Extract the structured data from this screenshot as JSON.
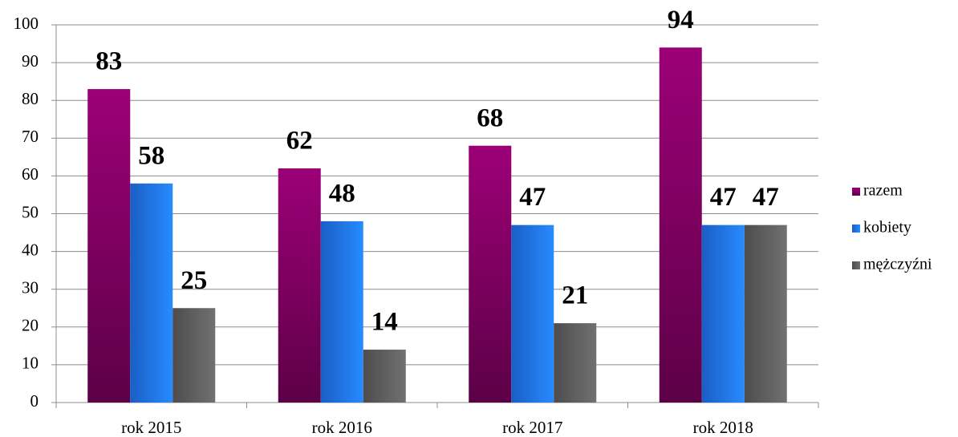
{
  "chart_data": {
    "type": "bar",
    "categories": [
      "rok 2015",
      "rok 2016",
      "rok 2017",
      "rok 2018"
    ],
    "series": [
      {
        "name": "razem",
        "color": "#8e006c",
        "values": [
          83,
          62,
          68,
          94
        ]
      },
      {
        "name": "kobiety",
        "color": "#1f6fe8",
        "values": [
          58,
          48,
          47,
          47
        ]
      },
      {
        "name": "mężczyźni",
        "color": "#5a5a5a",
        "values": [
          25,
          14,
          21,
          47
        ]
      }
    ],
    "ylim": [
      0,
      100
    ],
    "yticks": [
      0,
      10,
      20,
      30,
      40,
      50,
      60,
      70,
      80,
      90,
      100
    ],
    "grid": true,
    "legend": "right"
  }
}
